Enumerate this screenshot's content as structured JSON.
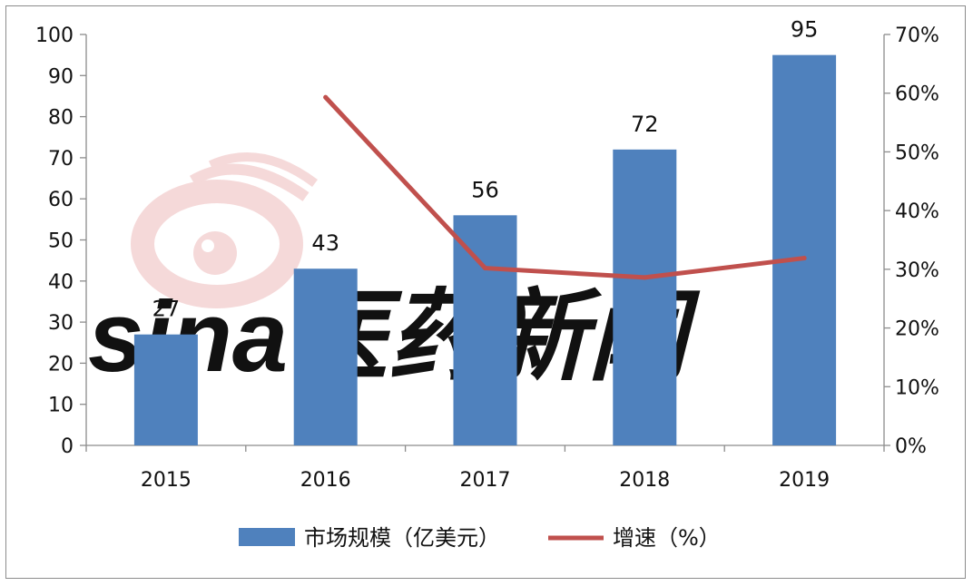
{
  "chart_data": {
    "type": "bar",
    "categories": [
      "2015",
      "2016",
      "2017",
      "2018",
      "2019"
    ],
    "series": [
      {
        "name": "市场规模（亿美元）",
        "type": "bar",
        "axis": "left",
        "color": "#4f81bd",
        "values": [
          27,
          43,
          56,
          72,
          95
        ],
        "data_labels": [
          "27",
          "43",
          "56",
          "72",
          "95"
        ]
      },
      {
        "name": "增速（%）",
        "type": "line",
        "axis": "right",
        "color": "#c0504d",
        "values": [
          null,
          59.3,
          30.2,
          28.6,
          31.9
        ]
      }
    ],
    "y_left": {
      "min": 0,
      "max": 100,
      "ticks": [
        "0",
        "10",
        "20",
        "30",
        "40",
        "50",
        "60",
        "70",
        "80",
        "90",
        "100"
      ]
    },
    "y_right": {
      "min": 0,
      "max": 70,
      "ticks": [
        "0%",
        "10%",
        "20%",
        "30%",
        "40%",
        "50%",
        "60%",
        "70%"
      ]
    },
    "grid": false,
    "legend_position": "bottom"
  },
  "watermark": {
    "text": "sina医药新闻",
    "color": "#e6e6e6",
    "eye_color": "#f7dcdc"
  }
}
